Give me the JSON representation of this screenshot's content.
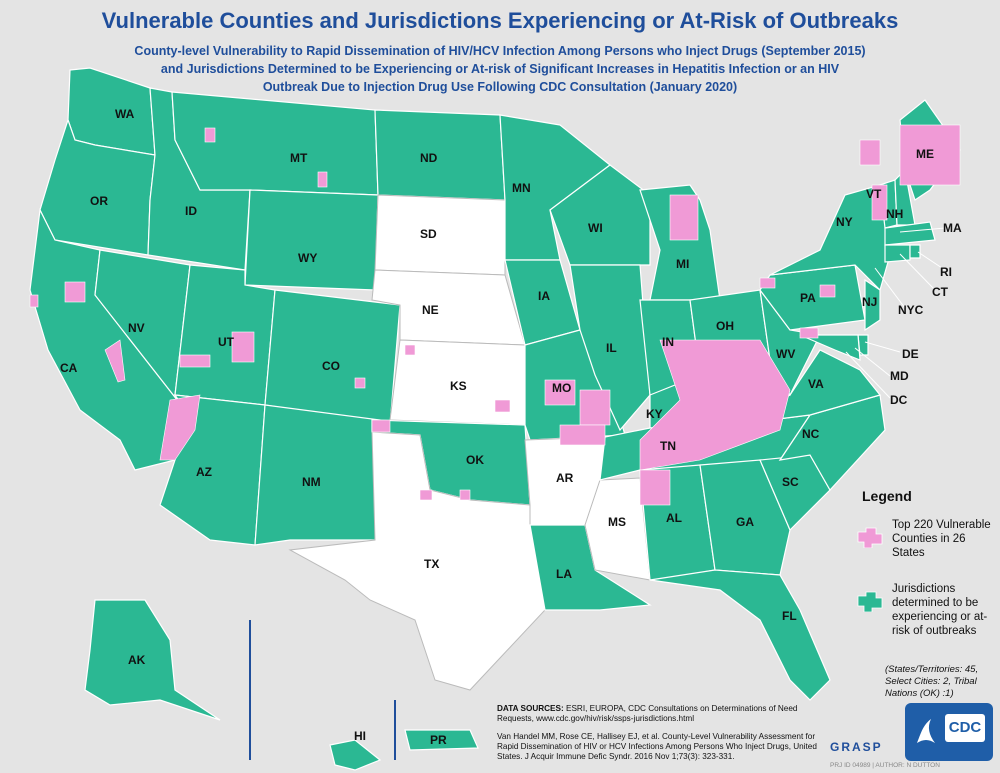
{
  "title": "Vulnerable Counties and Jurisdictions Experiencing or At-Risk of Outbreaks",
  "subtitle_lines": [
    "County-level Vulnerability to Rapid Dissemination of HIV/HCV Infection Among Persons who Inject Drugs (September 2015)",
    "and Jurisdictions Determined to be Experiencing or At-risk of Significant Increases in Hepatitis Infection or an HIV",
    "Outbreak Due to Injection Drug Use Following CDC Consultation (January 2020)"
  ],
  "colors": {
    "jurisdiction": "#2bb893",
    "vulnerable_county": "#f09ad6",
    "not_determined": "#ffffff",
    "title": "#1f4e9b"
  },
  "states": {
    "determined": [
      "WA",
      "OR",
      "CA",
      "ID",
      "NV",
      "MT",
      "WY",
      "UT",
      "AZ",
      "CO",
      "NM",
      "ND",
      "MN",
      "IA",
      "WI",
      "MI",
      "IL",
      "MO",
      "IN",
      "OH",
      "KY",
      "TN",
      "WV",
      "VA",
      "NC",
      "SC",
      "GA",
      "FL",
      "AL",
      "LA",
      "OK",
      "PA",
      "NY",
      "VT",
      "NH",
      "ME",
      "MA",
      "RI",
      "CT",
      "NJ",
      "DE",
      "MD",
      "DC",
      "AK",
      "HI",
      "PR"
    ],
    "not_determined": [
      "SD",
      "NE",
      "KS",
      "TX",
      "AR",
      "MS"
    ]
  },
  "labels": {
    "WA": "WA",
    "OR": "OR",
    "CA": "CA",
    "ID": "ID",
    "NV": "NV",
    "MT": "MT",
    "WY": "WY",
    "UT": "UT",
    "AZ": "AZ",
    "CO": "CO",
    "NM": "NM",
    "ND": "ND",
    "SD": "SD",
    "NE": "NE",
    "KS": "KS",
    "OK": "OK",
    "TX": "TX",
    "MN": "MN",
    "IA": "IA",
    "MO": "MO",
    "AR": "AR",
    "LA": "LA",
    "WI": "WI",
    "IL": "IL",
    "MI": "MI",
    "IN": "IN",
    "OH": "OH",
    "KY": "KY",
    "TN": "TN",
    "MS": "MS",
    "AL": "AL",
    "GA": "GA",
    "FL": "FL",
    "SC": "SC",
    "NC": "NC",
    "VA": "VA",
    "WV": "WV",
    "PA": "PA",
    "NY": "NY",
    "VT": "VT",
    "NH": "NH",
    "ME": "ME",
    "MA": "MA",
    "RI": "RI",
    "CT": "CT",
    "NYC": "NYC",
    "NJ": "NJ",
    "DE": "DE",
    "MD": "MD",
    "DC": "DC",
    "AK": "AK",
    "HI": "HI",
    "PR": "PR"
  },
  "legend": {
    "title": "Legend",
    "vulnerable": "Top 220 Vulnerable Counties in 26 States",
    "jurisdictions": "Jurisdictions determined to be experiencing or at-risk of outbreaks"
  },
  "note": "(States/Territories: 45, Select Cities: 2, Tribal Nations (OK) :1)",
  "sources_label": "DATA SOURCES:",
  "sources_text": "ESRI, EUROPA, CDC Consultations on Determinations of Need Requests, www.cdc.gov/hiv/risk/ssps-jurisdictions.html",
  "citation": "Van Handel MM, Rose CE, Hallisey EJ, et al. County-Level Vulnerability Assessment for Rapid Dissemination of HIV or HCV Infections Among Persons Who Inject Drugs, United States. J Acquir Immune Defic Syndr. 2016 Nov 1;73(3): 323-331.",
  "grasp": "GRASP",
  "cdc": "CDC",
  "footer": "PRJ ID 04989 | AUTHOR: N DUTTON"
}
